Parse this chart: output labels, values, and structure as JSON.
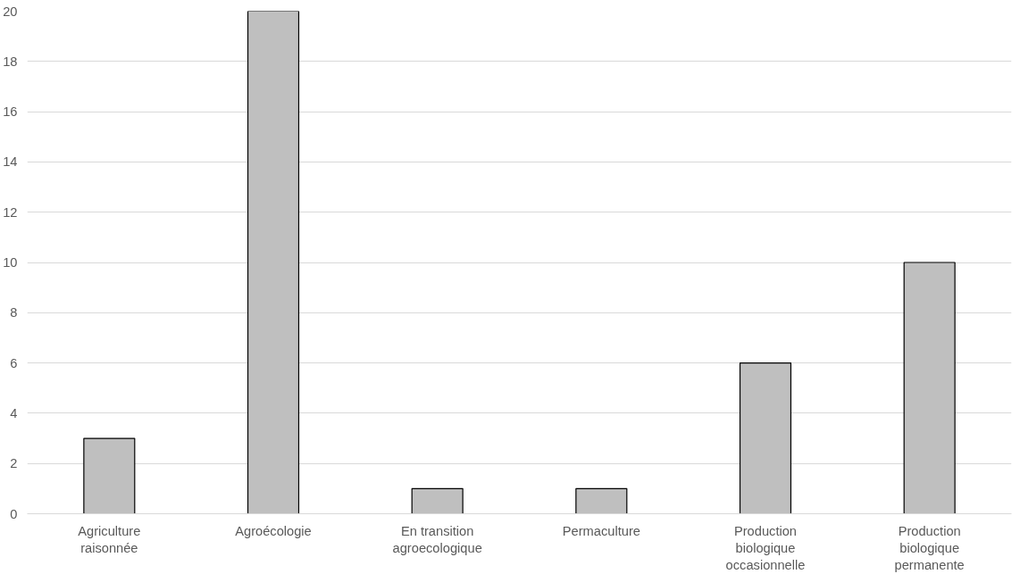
{
  "chart_data": {
    "type": "bar",
    "categories": [
      "Agriculture raisonnée",
      "Agroécologie",
      "En transition agroecologique",
      "Permaculture",
      "Production biologique occasionnelle",
      "Production biologique permanente"
    ],
    "values": [
      3,
      20,
      1,
      1,
      6,
      10
    ],
    "color": "#bfbfbf",
    "ylim": [
      0,
      20
    ],
    "yticks": [
      0,
      2,
      4,
      6,
      8,
      10,
      12,
      14,
      16,
      18,
      20
    ],
    "grid": "y"
  }
}
